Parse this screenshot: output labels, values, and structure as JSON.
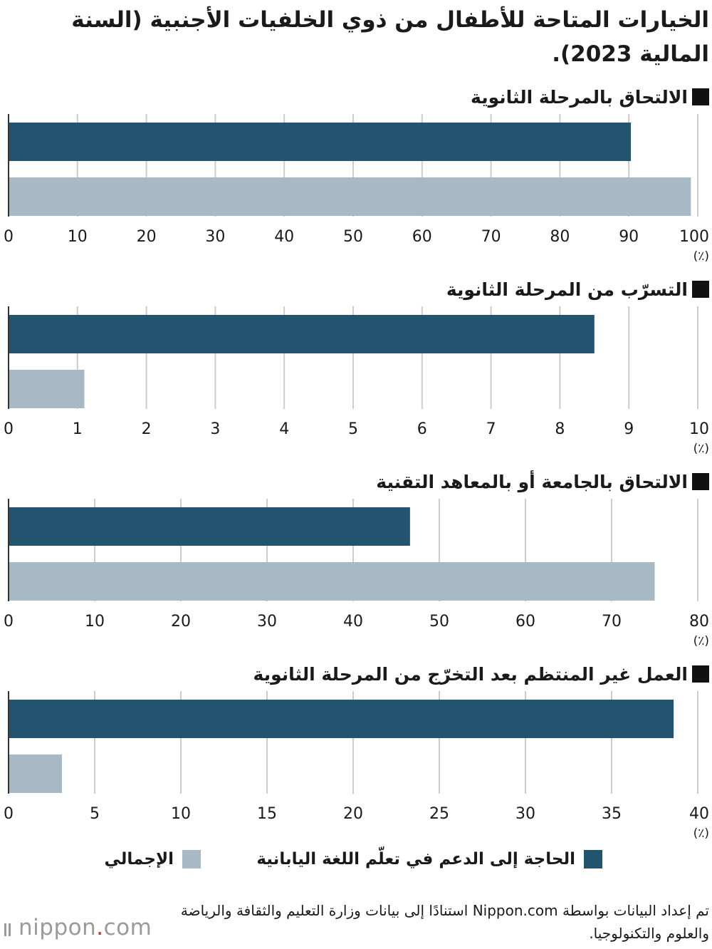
{
  "title": "الخيارات المتاحة للأطفال من ذوي الخلفيات الأجنبية (السنة المالية 2023).",
  "colors": {
    "japanese_support": "#22536f",
    "overall": "#a7b9c5",
    "grid": "#cccccc",
    "axis": "#333333"
  },
  "legend": {
    "series_1": "الحاجة إلى الدعم في تعلّم اللغة اليابانية",
    "series_2": "الإجمالي"
  },
  "source": "تم إعداد البيانات بواسطة Nippon.com استنادًا إلى بيانات وزارة التعليم والثقافة والرياضة والعلوم والتكنولوجيا.",
  "logo": {
    "main": "nippon",
    "dot": ".",
    "suffix": "com"
  },
  "chart_data": [
    {
      "type": "bar",
      "title": "الالتحاق بالمرحلة الثانوية",
      "unit": "(٪)",
      "series": [
        {
          "name": "الحاجة إلى الدعم في تعلّم اللغة اليابانية",
          "values": [
            90.3
          ]
        },
        {
          "name": "الإجمالي",
          "values": [
            99.0
          ]
        }
      ],
      "xlim": [
        0,
        100
      ],
      "ticks": [
        0,
        10,
        20,
        30,
        40,
        50,
        60,
        70,
        80,
        90,
        100
      ],
      "grid": true
    },
    {
      "type": "bar",
      "title": "التسرّب من المرحلة الثانوية",
      "unit": "(٪)",
      "series": [
        {
          "name": "الحاجة إلى الدعم في تعلّم اللغة اليابانية",
          "values": [
            8.5
          ]
        },
        {
          "name": "الإجمالي",
          "values": [
            1.1
          ]
        }
      ],
      "xlim": [
        0,
        10
      ],
      "ticks": [
        0,
        1,
        2,
        3,
        4,
        5,
        6,
        7,
        8,
        9,
        10
      ],
      "grid": true
    },
    {
      "type": "bar",
      "title": "الالتحاق بالجامعة أو بالمعاهد التقنية",
      "unit": "(٪)",
      "series": [
        {
          "name": "الحاجة إلى الدعم في تعلّم اللغة اليابانية",
          "values": [
            46.6
          ]
        },
        {
          "name": "الإجمالي",
          "values": [
            75.0
          ]
        }
      ],
      "xlim": [
        0,
        80
      ],
      "ticks": [
        0,
        10,
        20,
        30,
        40,
        50,
        60,
        70,
        80
      ],
      "grid": true
    },
    {
      "type": "bar",
      "title": "العمل غير المنتظم بعد التخرّج من المرحلة الثانوية",
      "unit": "(٪)",
      "series": [
        {
          "name": "الحاجة إلى الدعم في تعلّم اللغة اليابانية",
          "values": [
            38.6
          ]
        },
        {
          "name": "الإجمالي",
          "values": [
            3.1
          ]
        }
      ],
      "xlim": [
        0,
        40
      ],
      "ticks": [
        0,
        5,
        10,
        15,
        20,
        25,
        30,
        35,
        40
      ],
      "grid": true
    }
  ]
}
